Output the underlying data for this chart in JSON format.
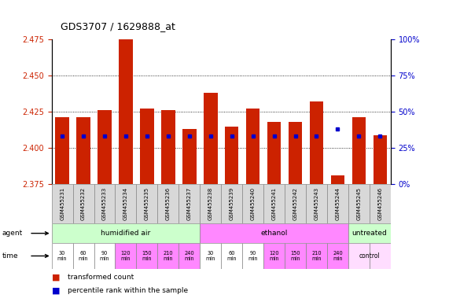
{
  "title": "GDS3707 / 1629888_at",
  "samples": [
    "GSM455231",
    "GSM455232",
    "GSM455233",
    "GSM455234",
    "GSM455235",
    "GSM455236",
    "GSM455237",
    "GSM455238",
    "GSM455239",
    "GSM455240",
    "GSM455241",
    "GSM455242",
    "GSM455243",
    "GSM455244",
    "GSM455245",
    "GSM455246"
  ],
  "bar_values": [
    2.421,
    2.421,
    2.426,
    2.476,
    2.427,
    2.426,
    2.413,
    2.438,
    2.415,
    2.427,
    2.418,
    2.418,
    2.432,
    2.381,
    2.421,
    2.409
  ],
  "bar_base": 2.375,
  "blue_positions": [
    2.408,
    2.408,
    2.408,
    2.408,
    2.408,
    2.408,
    2.408,
    2.408,
    2.408,
    2.408,
    2.408,
    2.408,
    2.408,
    2.413,
    2.408,
    2.408
  ],
  "ylim": [
    2.375,
    2.475
  ],
  "yticks": [
    2.375,
    2.4,
    2.425,
    2.45,
    2.475
  ],
  "right_yticks": [
    0,
    25,
    50,
    75,
    100
  ],
  "bar_color": "#cc2200",
  "blue_color": "#0000cc",
  "agent_groups": [
    {
      "label": "humidified air",
      "start": 0,
      "end": 7,
      "color": "#ccffcc"
    },
    {
      "label": "ethanol",
      "start": 7,
      "end": 14,
      "color": "#ff88ff"
    },
    {
      "label": "untreated",
      "start": 14,
      "end": 16,
      "color": "#ccffcc"
    }
  ],
  "time_labels": [
    "30\nmin",
    "60\nmin",
    "90\nmin",
    "120\nmin",
    "150\nmin",
    "210\nmin",
    "240\nmin",
    "30\nmin",
    "60\nmin",
    "90\nmin",
    "120\nmin",
    "150\nmin",
    "210\nmin",
    "240\nmin",
    "",
    ""
  ],
  "time_colors": [
    "#ffffff",
    "#ffffff",
    "#ffffff",
    "#ff88ff",
    "#ff88ff",
    "#ff88ff",
    "#ff88ff",
    "#ffffff",
    "#ffffff",
    "#ffffff",
    "#ff88ff",
    "#ff88ff",
    "#ff88ff",
    "#ff88ff",
    "#ffddff",
    "#ffddff"
  ],
  "tick_label_color_left": "#cc2200",
  "tick_label_color_right": "#0000cc",
  "bar_width": 0.65,
  "grid_yticks": [
    2.4,
    2.425,
    2.45
  ]
}
